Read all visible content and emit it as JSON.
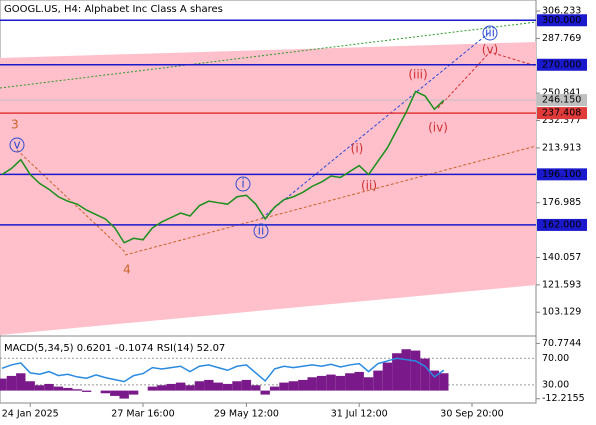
{
  "chart_data": {
    "type": "line",
    "title": "GOOGL.US, H4:  Alphabet Inc Class A shares",
    "categories": [
      null,
      null,
      null,
      "24 Jan 2025",
      null,
      null,
      null,
      null,
      null,
      null,
      null,
      null,
      null,
      null,
      null,
      "27 Mar 16:00",
      null,
      null,
      null,
      null,
      null,
      null,
      null,
      null,
      null,
      null,
      "29 May 12:00",
      null,
      null,
      null,
      null,
      null,
      null,
      null,
      null,
      null,
      null,
      null,
      "31 Jul 12:00",
      null,
      null,
      null,
      null,
      null,
      null,
      null,
      null,
      null,
      null,
      null,
      "30 Sep 20:00",
      null,
      null,
      null,
      null,
      null,
      null
    ],
    "series": [
      {
        "name": "GOOGL.US",
        "color": "#1a8f1a",
        "values": [
          196,
          200,
          206,
          196,
          190,
          186,
          181,
          178,
          176,
          172,
          169,
          166,
          160,
          150,
          153,
          152,
          160,
          164,
          167,
          170,
          168,
          175,
          178,
          177,
          176,
          181,
          182,
          176,
          166,
          174,
          179,
          181,
          184,
          188,
          191,
          195,
          194,
          198,
          202,
          196,
          205,
          214,
          226,
          238,
          252,
          249,
          240,
          246,
          null,
          null,
          null,
          null,
          null,
          null,
          null,
          null,
          null
        ]
      }
    ],
    "ylim": [
      87.1,
      313.67
    ],
    "yticks": [
      306.233,
      287.769,
      250.841,
      232.377,
      213.913,
      176.985,
      140.057,
      121.593,
      103.129
    ],
    "levels": [
      {
        "value": 300,
        "label": "300.000",
        "color": "#1a1acc"
      },
      {
        "value": 270,
        "label": "270.000",
        "color": "#1a1acc"
      },
      {
        "value": 246.15,
        "label": "246.150",
        "color": "#c0c0c0"
      },
      {
        "value": 237.408,
        "label": "237.408",
        "color": "#e03a3a"
      },
      {
        "value": 196.1,
        "label": "196.100",
        "color": "#1a1acc"
      },
      {
        "value": 162,
        "label": "162.000",
        "color": "#1a1acc"
      }
    ],
    "annotations": [
      {
        "text": "3",
        "color": "#c8642a"
      },
      {
        "text": "v",
        "color": "#2a4ad0"
      },
      {
        "text": "4",
        "color": "#c8642a"
      },
      {
        "text": "i",
        "color": "#2a4ad0"
      },
      {
        "text": "ii",
        "color": "#2a4ad0"
      },
      {
        "text": "(i)",
        "color": "#d03030"
      },
      {
        "text": "(ii)",
        "color": "#d03030"
      },
      {
        "text": "(iii)",
        "color": "#d03030"
      },
      {
        "text": "(iv)",
        "color": "#d03030"
      },
      {
        "text": "(v)",
        "color": "#d03030"
      },
      {
        "text": "iii",
        "color": "#2a4ad0"
      }
    ],
    "indicator": {
      "label": "MACD(5,34,5) 0.6201 -0.1074 RSI(14) 52.07",
      "ylim": [
        2.8,
        102
      ],
      "yticks": [
        {
          "value": 70,
          "label": "70.00"
        },
        {
          "value": 30,
          "label": "30.00"
        }
      ],
      "y2lim": [
        -18.6,
        80.35
      ],
      "y2ticks": [
        70.7744,
        -12.2155
      ],
      "histogram": {
        "name": "MACD",
        "color": "#7a1a8a",
        "axis": "y2",
        "values": [
          18,
          22,
          26,
          14,
          8,
          10,
          6,
          4,
          2,
          -2,
          0,
          -4,
          -8,
          -12,
          -6,
          0,
          6,
          8,
          10,
          12,
          8,
          14,
          16,
          12,
          10,
          14,
          16,
          8,
          -6,
          6,
          12,
          14,
          16,
          20,
          22,
          24,
          22,
          26,
          28,
          20,
          30,
          42,
          56,
          62,
          60,
          48,
          30,
          26
        ]
      },
      "rsi": {
        "name": "RSI",
        "color": "#2a8ae0",
        "values": [
          55,
          60,
          63,
          48,
          46,
          50,
          44,
          46,
          42,
          40,
          45,
          41,
          38,
          35,
          44,
          47,
          56,
          54,
          56,
          58,
          50,
          58,
          60,
          56,
          52,
          58,
          60,
          48,
          36,
          54,
          58,
          56,
          58,
          60,
          58,
          61,
          57,
          60,
          62,
          50,
          62,
          66,
          70,
          68,
          66,
          58,
          42,
          52
        ]
      }
    }
  }
}
